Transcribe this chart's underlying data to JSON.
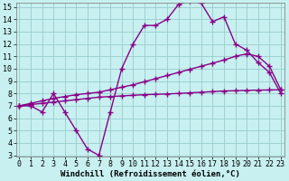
{
  "x": [
    0,
    1,
    2,
    3,
    4,
    5,
    6,
    7,
    8,
    9,
    10,
    11,
    12,
    13,
    14,
    15,
    16,
    17,
    18,
    19,
    20,
    21,
    22,
    23
  ],
  "windchill": [
    7.0,
    7.0,
    6.5,
    8.0,
    6.5,
    5.0,
    3.5,
    3.0,
    6.5,
    10.0,
    12.0,
    13.5,
    13.5,
    14.0,
    15.2,
    15.5,
    15.3,
    13.8,
    14.2,
    12.0,
    11.5,
    10.5,
    9.7,
    8.0
  ],
  "linear1": [
    7.0,
    7.1,
    7.2,
    7.3,
    7.4,
    7.5,
    7.6,
    7.7,
    7.75,
    7.8,
    7.85,
    7.9,
    7.93,
    7.96,
    8.0,
    8.05,
    8.1,
    8.15,
    8.2,
    8.22,
    8.25,
    8.27,
    8.28,
    8.3
  ],
  "linear2": [
    7.0,
    7.2,
    7.4,
    7.6,
    7.75,
    7.9,
    8.0,
    8.1,
    8.3,
    8.5,
    8.7,
    8.95,
    9.2,
    9.45,
    9.7,
    9.95,
    10.2,
    10.45,
    10.7,
    11.0,
    11.2,
    11.0,
    10.2,
    8.3
  ],
  "bg_color": "#c8f0f0",
  "line_color": "#880088",
  "grid_color": "#99cccc",
  "xlabel": "Windchill (Refroidissement éolien,°C)",
  "ylim": [
    3,
    15
  ],
  "xlim": [
    0,
    23
  ],
  "yticks": [
    3,
    4,
    5,
    6,
    7,
    8,
    9,
    10,
    11,
    12,
    13,
    14,
    15
  ],
  "xticks": [
    0,
    1,
    2,
    3,
    4,
    5,
    6,
    7,
    8,
    9,
    10,
    11,
    12,
    13,
    14,
    15,
    16,
    17,
    18,
    19,
    20,
    21,
    22,
    23
  ],
  "marker": "+",
  "linewidth": 1.0,
  "markersize": 4.0,
  "label_fontsize": 6.5,
  "tick_fontsize": 6.0
}
